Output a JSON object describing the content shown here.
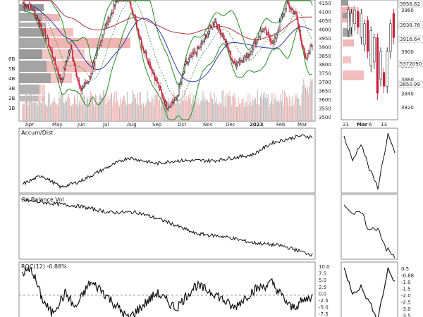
{
  "main_panel": {
    "volume_labels": [
      "6B",
      "5B",
      "4B",
      "3B",
      "2B",
      "1B"
    ],
    "price_axis_labels": [
      "4150",
      "4100",
      "4050",
      "4000",
      "3950",
      "3900",
      "3850",
      "3800",
      "3750",
      "3700",
      "3650",
      "3600",
      "3550",
      "3500"
    ],
    "month_labels": [
      "Apr",
      "May",
      "Jun",
      "Jul",
      "Aug",
      "Sep",
      "Oct",
      "Nov",
      "Dec",
      "2023",
      "Feb",
      "Mar"
    ]
  },
  "zoom_panel": {
    "price_axis_labels": [
      "3960",
      "3940",
      "3920",
      "3900",
      "3880",
      "3860",
      "3840",
      "3820"
    ],
    "value_boxes": [
      "3956.62",
      "3938.76",
      "3916.64",
      "5372090",
      "3850.99"
    ],
    "date_labels": [
      "21",
      "Mar",
      "6",
      "13"
    ]
  },
  "panels": {
    "accum_dist_label": "Accum/Dist",
    "obv_label": "On Balance Vol",
    "roc_label": "ROC(12) -0.88%"
  },
  "roc_axis": [
    "10.0",
    "7.5",
    "5.0",
    "2.5",
    "0.0",
    "-2.5",
    "-5.0",
    "-7.5"
  ],
  "roc_zoom_axis": [
    "0.5",
    "-0.88",
    "-1.0",
    "-1.5",
    "-2.0",
    "-2.5",
    "-3.0",
    "-3.5"
  ],
  "chart_data": {
    "type": "line",
    "panels": [
      {
        "name": "Price",
        "yaxis": [
          3500,
          4150
        ],
        "x": [
          "Apr",
          "May",
          "Jun",
          "Jul",
          "Aug",
          "Sep",
          "Oct",
          "Nov",
          "Dec",
          "2023",
          "Feb",
          "Mar"
        ],
        "values": [
          4100,
          4120,
          3850,
          3950,
          4200,
          3900,
          3600,
          3750,
          3950,
          3850,
          4150,
          3920
        ]
      },
      {
        "name": "Accum/Dist",
        "values": [
          0.1,
          0.2,
          0.15,
          0.25,
          0.45,
          0.55,
          0.5,
          0.55,
          0.6,
          0.65,
          0.8,
          0.9
        ]
      },
      {
        "name": "On Balance Vol",
        "values": [
          0.9,
          0.85,
          0.8,
          0.78,
          0.8,
          0.7,
          0.5,
          0.45,
          0.35,
          0.3,
          0.3,
          0.2
        ]
      },
      {
        "name": "ROC(12)",
        "yaxis": [
          -7.5,
          10
        ],
        "values": [
          8,
          -2,
          -6,
          2,
          5,
          -5,
          -3,
          6,
          2,
          -4,
          4,
          -0.88
        ]
      }
    ]
  }
}
